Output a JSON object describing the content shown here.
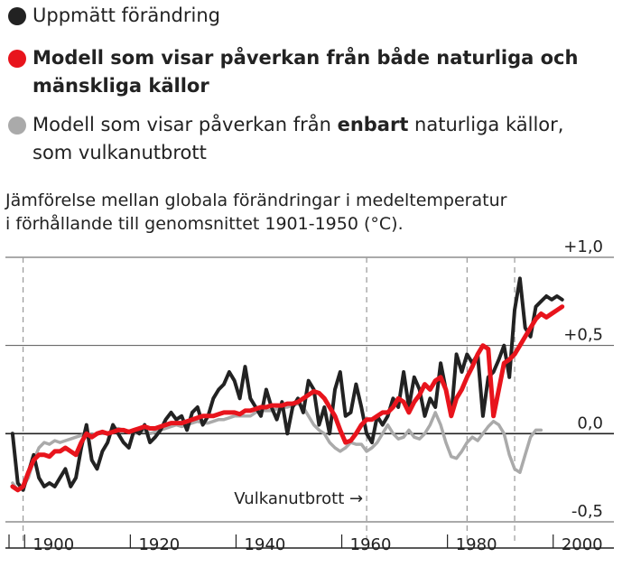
{
  "legend": {
    "observed": {
      "label": "Uppmätt förändring",
      "color": "#222222"
    },
    "model_both": {
      "label_line1": "Modell som visar påverkan från både naturliga och",
      "label_line2": "mänskliga källor",
      "color": "#e8141c"
    },
    "model_natural": {
      "label_pre": "Modell som visar påverkan från ",
      "label_bold": "enbart",
      "label_post": " naturliga källor,",
      "label_line2": "som vulkanutbrott",
      "color": "#aaaaaa"
    }
  },
  "description": {
    "line1": "Jämförelse mellan globala förändringar i medeltemperatur",
    "line2": "i förhållande till genomsnittet 1901-1950 (°C)."
  },
  "chart_data": {
    "type": "line",
    "xlim": [
      1895,
      2005
    ],
    "ylim": [
      -0.5,
      1.0
    ],
    "x_ticks": [
      "1900",
      "1920",
      "1940",
      "1960",
      "1980",
      "2000"
    ],
    "y_ticks": [
      "+1,0",
      "+0,5",
      "0,0",
      "-0,5"
    ],
    "y_tick_values": [
      1.0,
      0.5,
      0.0,
      -0.5
    ],
    "x_tick_values": [
      1900,
      1920,
      1940,
      1960,
      1980,
      2000
    ],
    "volcano_years": [
      1898,
      1963,
      1982,
      1991
    ],
    "annotation": {
      "text": "Vulkanutbrott",
      "arrow": "→"
    },
    "grid": "horizontal",
    "series": [
      {
        "key": "natural",
        "color": "#aaaaaa",
        "x": [
          1896,
          1897,
          1898,
          1899,
          1900,
          1901,
          1902,
          1903,
          1904,
          1905,
          1906,
          1907,
          1908,
          1909,
          1910,
          1911,
          1912,
          1913,
          1914,
          1915,
          1916,
          1917,
          1918,
          1919,
          1920,
          1921,
          1922,
          1923,
          1924,
          1925,
          1926,
          1927,
          1928,
          1929,
          1930,
          1931,
          1932,
          1933,
          1934,
          1935,
          1936,
          1937,
          1938,
          1939,
          1940,
          1941,
          1942,
          1943,
          1944,
          1945,
          1946,
          1947,
          1948,
          1949,
          1950,
          1951,
          1952,
          1953,
          1954,
          1955,
          1956,
          1957,
          1958,
          1959,
          1960,
          1961,
          1962,
          1963,
          1964,
          1965,
          1966,
          1967,
          1968,
          1969,
          1970,
          1971,
          1972,
          1973,
          1974,
          1975,
          1976,
          1977,
          1978,
          1979,
          1980,
          1981,
          1982,
          1983,
          1984,
          1985,
          1986,
          1987,
          1988,
          1989,
          1990,
          1991,
          1992,
          1993,
          1994,
          1995,
          1996
        ],
        "y": [
          -0.28,
          -0.32,
          -0.3,
          -0.25,
          -0.15,
          -0.08,
          -0.05,
          -0.06,
          -0.04,
          -0.05,
          -0.04,
          -0.03,
          -0.02,
          -0.01,
          0.0,
          -0.01,
          0.0,
          0.0,
          0.0,
          0.02,
          0.03,
          0.02,
          0.01,
          0.0,
          0.01,
          0.02,
          0.0,
          0.01,
          0.02,
          0.03,
          0.04,
          0.05,
          0.04,
          0.05,
          0.06,
          0.07,
          0.06,
          0.06,
          0.07,
          0.08,
          0.08,
          0.09,
          0.1,
          0.1,
          0.1,
          0.1,
          0.12,
          0.13,
          0.13,
          0.13,
          0.14,
          0.15,
          0.15,
          0.16,
          0.17,
          0.15,
          0.1,
          0.05,
          0.02,
          0.0,
          -0.05,
          -0.08,
          -0.1,
          -0.08,
          -0.05,
          -0.06,
          -0.06,
          -0.1,
          -0.08,
          -0.05,
          0.0,
          0.05,
          0.0,
          -0.03,
          -0.02,
          0.02,
          -0.02,
          -0.03,
          0.0,
          0.05,
          0.12,
          0.05,
          -0.05,
          -0.13,
          -0.14,
          -0.1,
          -0.05,
          -0.02,
          -0.04,
          0.0,
          0.04,
          0.07,
          0.05,
          0.0,
          -0.12,
          -0.2,
          -0.22,
          -0.12,
          -0.02,
          0.02,
          0.02
        ]
      },
      {
        "key": "observed",
        "color": "#222222",
        "x": [
          1896,
          1897,
          1898,
          1899,
          1900,
          1901,
          1902,
          1903,
          1904,
          1905,
          1906,
          1907,
          1908,
          1909,
          1910,
          1911,
          1912,
          1913,
          1914,
          1915,
          1916,
          1917,
          1918,
          1919,
          1920,
          1921,
          1922,
          1923,
          1924,
          1925,
          1926,
          1927,
          1928,
          1929,
          1930,
          1931,
          1932,
          1933,
          1934,
          1935,
          1936,
          1937,
          1938,
          1939,
          1940,
          1941,
          1942,
          1943,
          1944,
          1945,
          1946,
          1947,
          1948,
          1949,
          1950,
          1951,
          1952,
          1953,
          1954,
          1955,
          1956,
          1957,
          1958,
          1959,
          1960,
          1961,
          1962,
          1963,
          1964,
          1965,
          1966,
          1967,
          1968,
          1969,
          1970,
          1971,
          1972,
          1973,
          1974,
          1975,
          1976,
          1977,
          1978,
          1979,
          1980,
          1981,
          1982,
          1983,
          1984,
          1985,
          1986,
          1987,
          1988,
          1989,
          1990,
          1991,
          1992,
          1993,
          1994,
          1995,
          1996,
          1997,
          1998,
          1999,
          2000
        ],
        "y": [
          0.0,
          -0.28,
          -0.32,
          -0.22,
          -0.12,
          -0.25,
          -0.3,
          -0.28,
          -0.3,
          -0.25,
          -0.2,
          -0.3,
          -0.25,
          -0.08,
          0.05,
          -0.15,
          -0.2,
          -0.1,
          -0.05,
          0.05,
          0.0,
          -0.05,
          -0.08,
          0.02,
          0.0,
          0.05,
          -0.05,
          -0.02,
          0.02,
          0.08,
          0.12,
          0.08,
          0.1,
          0.02,
          0.12,
          0.15,
          0.05,
          0.1,
          0.2,
          0.25,
          0.28,
          0.35,
          0.3,
          0.2,
          0.38,
          0.2,
          0.15,
          0.1,
          0.25,
          0.15,
          0.08,
          0.18,
          0.0,
          0.15,
          0.2,
          0.12,
          0.3,
          0.25,
          0.05,
          0.15,
          0.0,
          0.25,
          0.35,
          0.1,
          0.12,
          0.28,
          0.15,
          0.0,
          -0.05,
          0.1,
          0.05,
          0.1,
          0.2,
          0.15,
          0.35,
          0.15,
          0.32,
          0.25,
          0.1,
          0.2,
          0.15,
          0.4,
          0.25,
          0.1,
          0.45,
          0.35,
          0.45,
          0.4,
          0.45,
          0.1,
          0.32,
          0.35,
          0.42,
          0.5,
          0.32,
          0.7,
          0.88,
          0.6,
          0.55,
          0.72,
          0.75,
          0.78,
          0.76,
          0.78,
          0.76
        ]
      },
      {
        "key": "both",
        "color": "#e8141c",
        "x": [
          1896,
          1897,
          1898,
          1899,
          1900,
          1901,
          1902,
          1903,
          1904,
          1905,
          1906,
          1907,
          1908,
          1909,
          1910,
          1911,
          1912,
          1913,
          1914,
          1915,
          1916,
          1917,
          1918,
          1919,
          1920,
          1921,
          1922,
          1923,
          1924,
          1925,
          1926,
          1927,
          1928,
          1929,
          1930,
          1931,
          1932,
          1933,
          1934,
          1935,
          1936,
          1937,
          1938,
          1939,
          1940,
          1941,
          1942,
          1943,
          1944,
          1945,
          1946,
          1947,
          1948,
          1949,
          1950,
          1951,
          1952,
          1953,
          1954,
          1955,
          1956,
          1957,
          1958,
          1959,
          1960,
          1961,
          1962,
          1963,
          1964,
          1965,
          1966,
          1967,
          1968,
          1969,
          1970,
          1971,
          1972,
          1973,
          1974,
          1975,
          1976,
          1977,
          1978,
          1979,
          1980,
          1981,
          1982,
          1983,
          1984,
          1985,
          1986,
          1987,
          1988,
          1989,
          1990,
          1991,
          1992,
          1993,
          1994,
          1995,
          1996,
          1997,
          1998,
          1999,
          2000
        ],
        "y": [
          -0.3,
          -0.32,
          -0.3,
          -0.22,
          -0.15,
          -0.12,
          -0.12,
          -0.13,
          -0.1,
          -0.1,
          -0.08,
          -0.1,
          -0.12,
          -0.05,
          0.0,
          -0.02,
          0.0,
          0.01,
          0.0,
          0.01,
          0.02,
          0.02,
          0.01,
          0.02,
          0.03,
          0.04,
          0.03,
          0.03,
          0.04,
          0.05,
          0.06,
          0.06,
          0.06,
          0.07,
          0.08,
          0.09,
          0.1,
          0.1,
          0.1,
          0.11,
          0.12,
          0.12,
          0.12,
          0.11,
          0.13,
          0.13,
          0.14,
          0.15,
          0.15,
          0.16,
          0.16,
          0.16,
          0.17,
          0.17,
          0.18,
          0.2,
          0.22,
          0.24,
          0.23,
          0.2,
          0.15,
          0.1,
          0.02,
          -0.05,
          -0.04,
          0.0,
          0.05,
          0.08,
          0.08,
          0.1,
          0.12,
          0.12,
          0.15,
          0.2,
          0.18,
          0.12,
          0.18,
          0.22,
          0.28,
          0.25,
          0.3,
          0.32,
          0.25,
          0.1,
          0.2,
          0.25,
          0.32,
          0.38,
          0.45,
          0.5,
          0.48,
          0.1,
          0.25,
          0.4,
          0.42,
          0.45,
          0.5,
          0.55,
          0.6,
          0.65,
          0.68,
          0.66,
          0.68,
          0.7,
          0.72
        ]
      }
    ]
  }
}
